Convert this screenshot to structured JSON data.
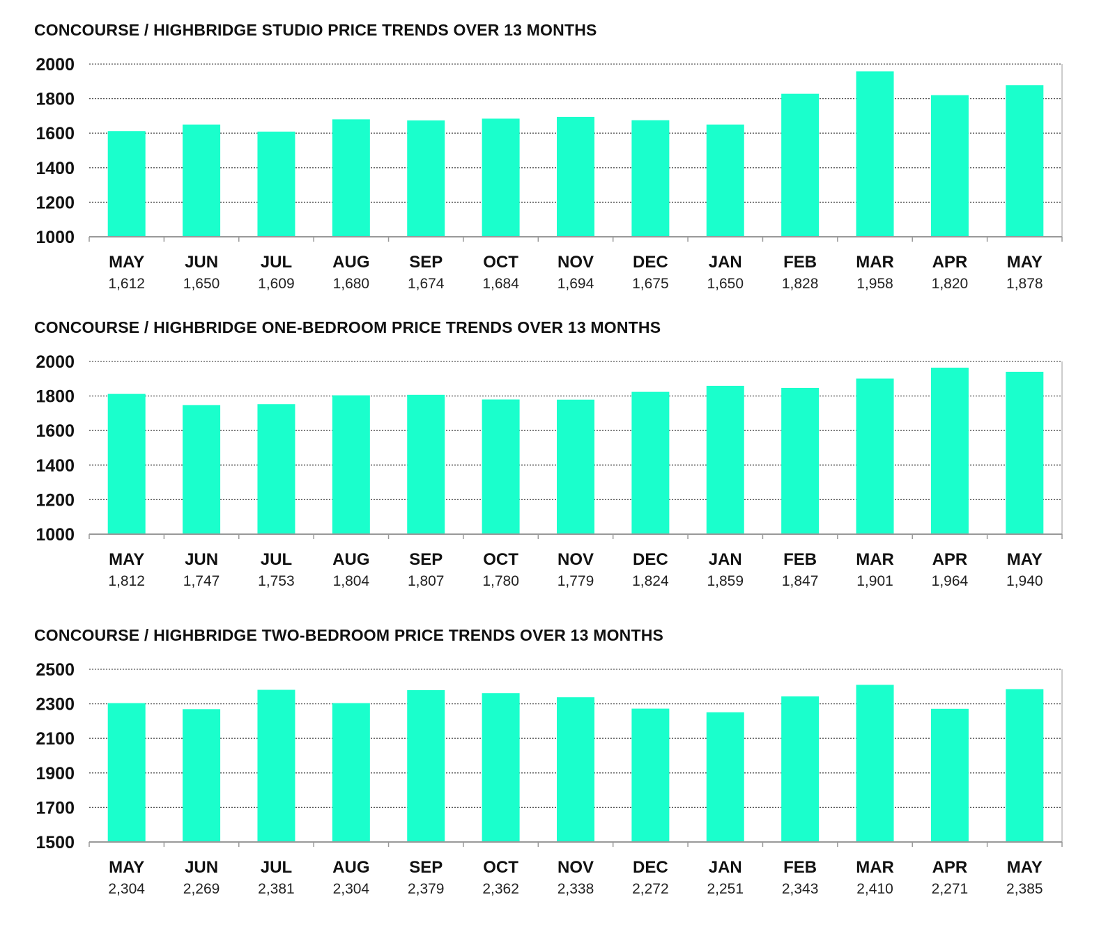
{
  "colors": {
    "bar": "#1affcc",
    "grid": "#555555",
    "axis": "#999999",
    "text": "#111111"
  },
  "chart_data": [
    {
      "type": "bar",
      "title": "CONCOURSE / HIGHBRIDGE STUDIO PRICE TRENDS OVER 13 MONTHS",
      "categories": [
        "MAY",
        "JUN",
        "JUL",
        "AUG",
        "SEP",
        "OCT",
        "NOV",
        "DEC",
        "JAN",
        "FEB",
        "MAR",
        "APR",
        "MAY"
      ],
      "values": [
        1612,
        1650,
        1609,
        1680,
        1674,
        1684,
        1694,
        1675,
        1650,
        1828,
        1958,
        1820,
        1878
      ],
      "value_labels": [
        "1,612",
        "1,650",
        "1,609",
        "1,680",
        "1,674",
        "1,684",
        "1,694",
        "1,675",
        "1,650",
        "1,828",
        "1,958",
        "1,820",
        "1,878"
      ],
      "yticks": [
        1000,
        1200,
        1400,
        1600,
        1800,
        2000
      ],
      "ylim": [
        1000,
        2000
      ],
      "grid": true
    },
    {
      "type": "bar",
      "title": "CONCOURSE / HIGHBRIDGE ONE-BEDROOM PRICE TRENDS OVER 13 MONTHS",
      "categories": [
        "MAY",
        "JUN",
        "JUL",
        "AUG",
        "SEP",
        "OCT",
        "NOV",
        "DEC",
        "JAN",
        "FEB",
        "MAR",
        "APR",
        "MAY"
      ],
      "values": [
        1812,
        1747,
        1753,
        1804,
        1807,
        1780,
        1779,
        1824,
        1859,
        1847,
        1901,
        1964,
        1940
      ],
      "value_labels": [
        "1,812",
        "1,747",
        "1,753",
        "1,804",
        "1,807",
        "1,780",
        "1,779",
        "1,824",
        "1,859",
        "1,847",
        "1,901",
        "1,964",
        "1,940"
      ],
      "yticks": [
        1000,
        1200,
        1400,
        1600,
        1800,
        2000
      ],
      "ylim": [
        1000,
        2000
      ],
      "grid": true
    },
    {
      "type": "bar",
      "title": "CONCOURSE / HIGHBRIDGE TWO-BEDROOM PRICE TRENDS OVER 13 MONTHS",
      "categories": [
        "MAY",
        "JUN",
        "JUL",
        "AUG",
        "SEP",
        "OCT",
        "NOV",
        "DEC",
        "JAN",
        "FEB",
        "MAR",
        "APR",
        "MAY"
      ],
      "values": [
        2304,
        2269,
        2381,
        2304,
        2379,
        2362,
        2338,
        2272,
        2251,
        2343,
        2410,
        2271,
        2385
      ],
      "value_labels": [
        "2,304",
        "2,269",
        "2,381",
        "2,304",
        "2,379",
        "2,362",
        "2,338",
        "2,272",
        "2,251",
        "2,343",
        "2,410",
        "2,271",
        "2,385"
      ],
      "yticks": [
        1500,
        1700,
        1900,
        2100,
        2300,
        2500
      ],
      "ylim": [
        1500,
        2500
      ],
      "grid": true
    }
  ]
}
